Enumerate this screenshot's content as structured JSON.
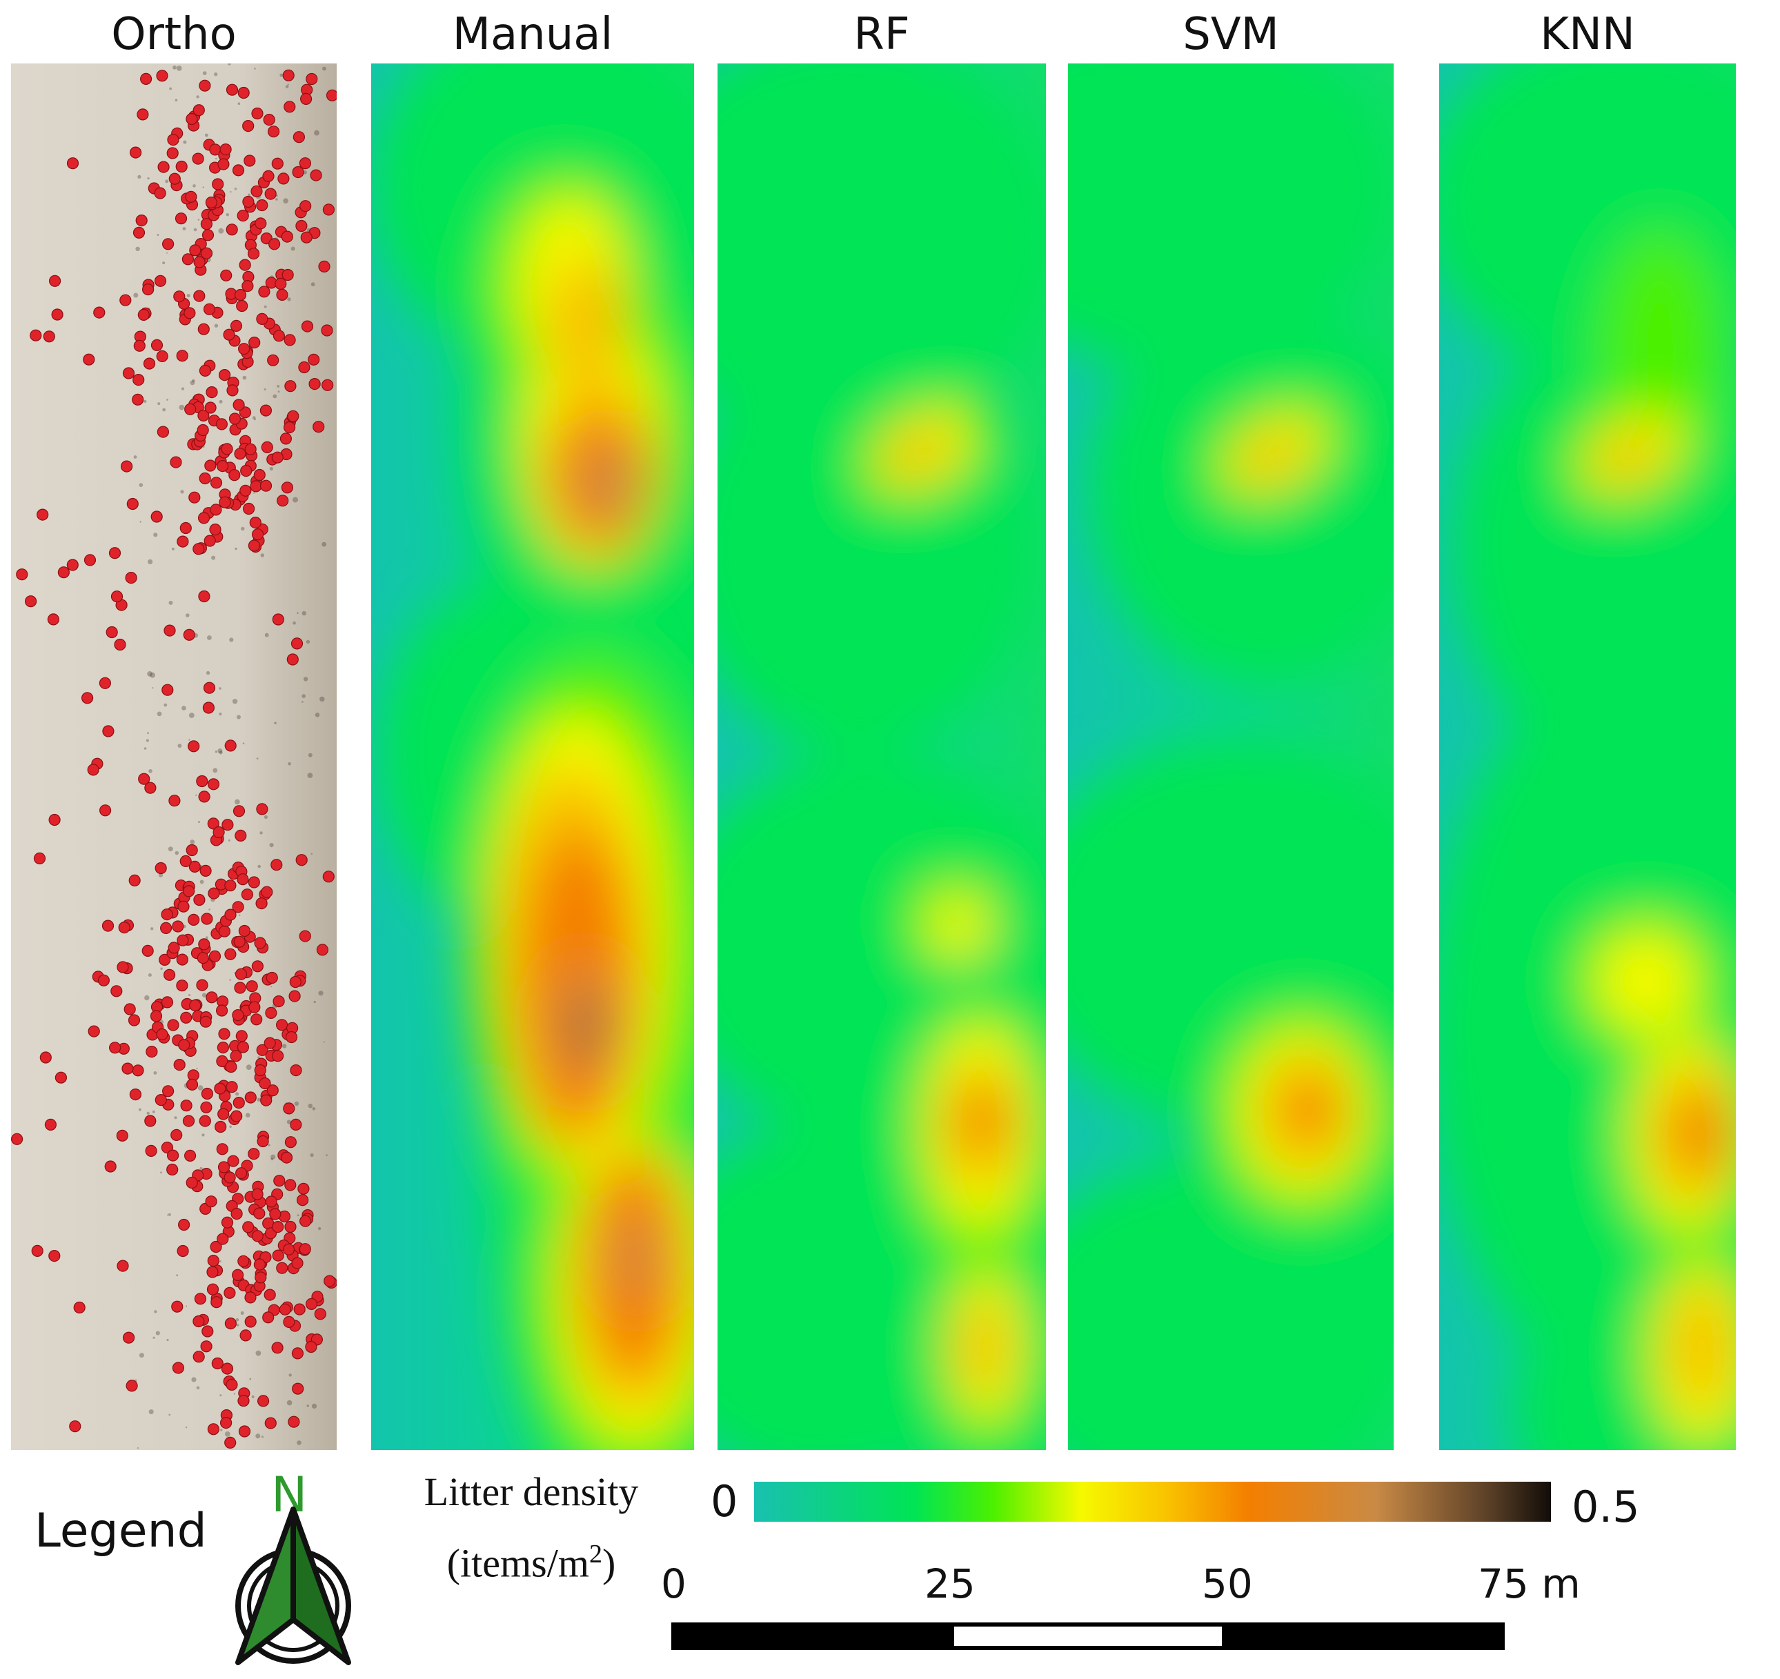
{
  "panels": {
    "ortho": "Ortho",
    "manual": "Manual",
    "rf": "RF",
    "svm": "SVM",
    "knn": "KNN"
  },
  "legend": {
    "label": "Legend",
    "north": "N",
    "north_arrow_icon": "north-arrow-icon"
  },
  "colorbar": {
    "title_line1": "Litter density",
    "title_line2_prefix": "(items/m",
    "title_line2_sup": "2",
    "title_line2_suffix": ")",
    "min": "0",
    "max": "0.5",
    "colors": [
      "#19c0b0",
      "#00e455",
      "#4cf000",
      "#f6f900",
      "#f9c100",
      "#f47f00",
      "#c98a45",
      "#5c4128",
      "#120d08"
    ]
  },
  "scale": {
    "ticks": [
      "0",
      "25",
      "50",
      "75 m"
    ]
  },
  "colors": {
    "litter_point": "#e0232a",
    "sand": "#d8d2c7",
    "background_density": "#13c9a8"
  }
}
